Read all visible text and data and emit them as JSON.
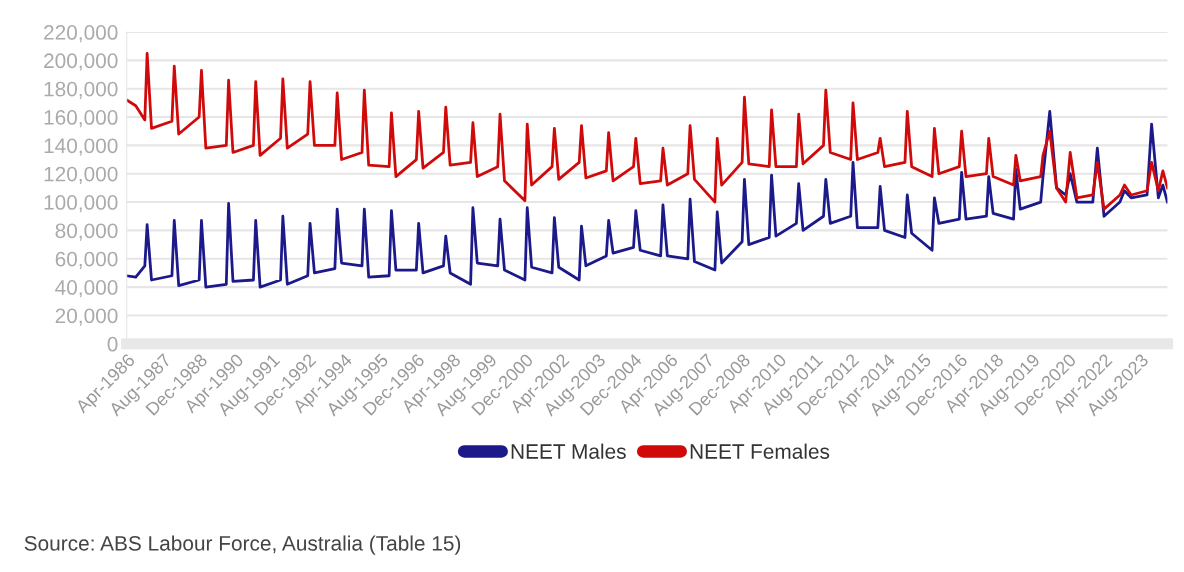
{
  "chart_data": {
    "type": "line",
    "x": [
      "1986-04",
      "1986-08",
      "1986-12",
      "1987-01",
      "1987-03",
      "1987-12",
      "1988-01",
      "1988-03",
      "1988-12",
      "1989-01",
      "1989-03",
      "1989-12",
      "1990-01",
      "1990-03",
      "1990-12",
      "1991-01",
      "1991-03",
      "1991-12",
      "1992-01",
      "1992-03",
      "1992-12",
      "1993-01",
      "1993-03",
      "1993-12",
      "1994-01",
      "1994-03",
      "1994-12",
      "1995-01",
      "1995-03",
      "1995-12",
      "1996-01",
      "1996-03",
      "1996-12",
      "1997-01",
      "1997-03",
      "1997-12",
      "1998-01",
      "1998-03",
      "1998-12",
      "1999-01",
      "1999-03",
      "1999-12",
      "2000-01",
      "2000-03",
      "2000-12",
      "2001-01",
      "2001-03",
      "2001-12",
      "2002-01",
      "2002-03",
      "2002-12",
      "2003-01",
      "2003-03",
      "2003-12",
      "2004-01",
      "2004-03",
      "2004-12",
      "2005-01",
      "2005-03",
      "2005-12",
      "2006-01",
      "2006-03",
      "2006-12",
      "2007-01",
      "2007-03",
      "2007-12",
      "2008-01",
      "2008-03",
      "2008-12",
      "2009-01",
      "2009-03",
      "2009-12",
      "2010-01",
      "2010-03",
      "2010-12",
      "2011-01",
      "2011-03",
      "2011-12",
      "2012-01",
      "2012-03",
      "2012-12",
      "2013-01",
      "2013-03",
      "2013-12",
      "2014-01",
      "2014-03",
      "2014-12",
      "2015-01",
      "2015-03",
      "2015-12",
      "2016-01",
      "2016-03",
      "2016-12",
      "2017-01",
      "2017-03",
      "2017-12",
      "2018-01",
      "2018-03",
      "2018-12",
      "2019-01",
      "2019-03",
      "2019-12",
      "2020-01",
      "2020-04",
      "2020-07",
      "2020-11",
      "2021-01",
      "2021-04",
      "2021-11",
      "2022-01",
      "2022-04",
      "2022-11",
      "2023-01",
      "2023-04",
      "2023-11",
      "2024-01",
      "2024-04",
      "2024-06",
      "2024-08"
    ],
    "series": [
      {
        "name": "NEET Males",
        "color": "#1c1a8a",
        "values": [
          48000,
          47000,
          55000,
          84000,
          45000,
          48000,
          87000,
          41000,
          45000,
          87000,
          40000,
          42000,
          99000,
          44000,
          45000,
          87000,
          40000,
          45000,
          90000,
          42000,
          48000,
          85000,
          50000,
          53000,
          95000,
          57000,
          55000,
          95000,
          47000,
          48000,
          94000,
          52000,
          52000,
          85000,
          50000,
          55000,
          76000,
          50000,
          42000,
          96000,
          57000,
          55000,
          88000,
          52000,
          45000,
          96000,
          54000,
          50000,
          89000,
          54000,
          45000,
          83000,
          55000,
          62000,
          87000,
          64000,
          68000,
          94000,
          66000,
          62000,
          98000,
          62000,
          60000,
          102000,
          58000,
          52000,
          93000,
          57000,
          72000,
          116000,
          70000,
          75000,
          119000,
          76000,
          85000,
          113000,
          80000,
          90000,
          116000,
          85000,
          90000,
          128000,
          82000,
          82000,
          111000,
          80000,
          75000,
          105000,
          78000,
          66000,
          103000,
          85000,
          88000,
          121000,
          88000,
          90000,
          118000,
          92000,
          88000,
          123000,
          95000,
          100000,
          118000,
          164000,
          110000,
          105000,
          120000,
          100000,
          100000,
          138000,
          90000,
          100000,
          108000,
          103000,
          105000,
          155000,
          103000,
          112000,
          100000
        ]
      },
      {
        "name": "NEET Females",
        "color": "#d00a0a",
        "values": [
          172000,
          168000,
          158000,
          205000,
          152000,
          157000,
          196000,
          148000,
          160000,
          193000,
          138000,
          140000,
          186000,
          135000,
          140000,
          185000,
          133000,
          145000,
          187000,
          138000,
          148000,
          185000,
          140000,
          140000,
          177000,
          130000,
          135000,
          179000,
          126000,
          125000,
          163000,
          118000,
          130000,
          164000,
          124000,
          135000,
          167000,
          126000,
          128000,
          156000,
          118000,
          125000,
          162000,
          115000,
          101000,
          155000,
          112000,
          125000,
          152000,
          116000,
          128000,
          154000,
          117000,
          122000,
          149000,
          115000,
          125000,
          145000,
          113000,
          115000,
          138000,
          112000,
          120000,
          154000,
          116000,
          100000,
          145000,
          112000,
          128000,
          174000,
          127000,
          125000,
          165000,
          125000,
          125000,
          162000,
          127000,
          140000,
          179000,
          135000,
          130000,
          170000,
          130000,
          135000,
          145000,
          125000,
          128000,
          164000,
          125000,
          118000,
          152000,
          120000,
          125000,
          150000,
          118000,
          120000,
          145000,
          118000,
          112000,
          133000,
          115000,
          118000,
          133000,
          150000,
          110000,
          100000,
          135000,
          103000,
          105000,
          128000,
          95000,
          105000,
          112000,
          105000,
          108000,
          128000,
          108000,
          122000,
          110000
        ]
      }
    ],
    "xlim": [
      "1986-04",
      "2024-08"
    ],
    "xticks": [
      {
        "value": "1986-04",
        "label": "Apr-1986"
      },
      {
        "value": "1987-08",
        "label": "Aug-1987"
      },
      {
        "value": "1988-12",
        "label": "Dec-1988"
      },
      {
        "value": "1990-04",
        "label": "Apr-1990"
      },
      {
        "value": "1991-08",
        "label": "Aug-1991"
      },
      {
        "value": "1992-12",
        "label": "Dec-1992"
      },
      {
        "value": "1994-04",
        "label": "Apr-1994"
      },
      {
        "value": "1995-08",
        "label": "Aug-1995"
      },
      {
        "value": "1996-12",
        "label": "Dec-1996"
      },
      {
        "value": "1998-04",
        "label": "Apr-1998"
      },
      {
        "value": "1999-08",
        "label": "Aug-1999"
      },
      {
        "value": "2000-12",
        "label": "Dec-2000"
      },
      {
        "value": "2002-04",
        "label": "Apr-2002"
      },
      {
        "value": "2003-08",
        "label": "Aug-2003"
      },
      {
        "value": "2004-12",
        "label": "Dec-2004"
      },
      {
        "value": "2006-04",
        "label": "Apr-2006"
      },
      {
        "value": "2007-08",
        "label": "Aug-2007"
      },
      {
        "value": "2008-12",
        "label": "Dec-2008"
      },
      {
        "value": "2010-04",
        "label": "Apr-2010"
      },
      {
        "value": "2011-08",
        "label": "Aug-2011"
      },
      {
        "value": "2012-12",
        "label": "Dec-2012"
      },
      {
        "value": "2014-04",
        "label": "Apr-2014"
      },
      {
        "value": "2015-08",
        "label": "Aug-2015"
      },
      {
        "value": "2016-12",
        "label": "Dec-2016"
      },
      {
        "value": "2018-04",
        "label": "Apr-2018"
      },
      {
        "value": "2019-08",
        "label": "Aug-2019"
      },
      {
        "value": "2020-12",
        "label": "Dec-2020"
      },
      {
        "value": "2022-04",
        "label": "Apr-2022"
      },
      {
        "value": "2023-08",
        "label": "Aug-2023"
      }
    ],
    "ylim": [
      0,
      220000
    ],
    "yticks": [
      0,
      {
        "value": 20000,
        "label": "20,000"
      },
      {
        "value": 40000,
        "label": "40,000"
      },
      {
        "value": 60000,
        "label": "60,000"
      },
      {
        "value": 80000,
        "label": "80,000"
      },
      {
        "value": 100000,
        "label": "100,000"
      },
      {
        "value": 120000,
        "label": "120,000"
      },
      {
        "value": 140000,
        "label": "140,000"
      },
      {
        "value": 160000,
        "label": "160,000"
      },
      {
        "value": 180000,
        "label": "180,000"
      },
      {
        "value": 200000,
        "label": "200,000"
      },
      {
        "value": 220000,
        "label": "220,000"
      }
    ],
    "grid": "y",
    "legend": "bottom",
    "line_style": "solid",
    "annotations": [
      "Source: ABS Labour Force, Australia (Table 15)"
    ]
  }
}
